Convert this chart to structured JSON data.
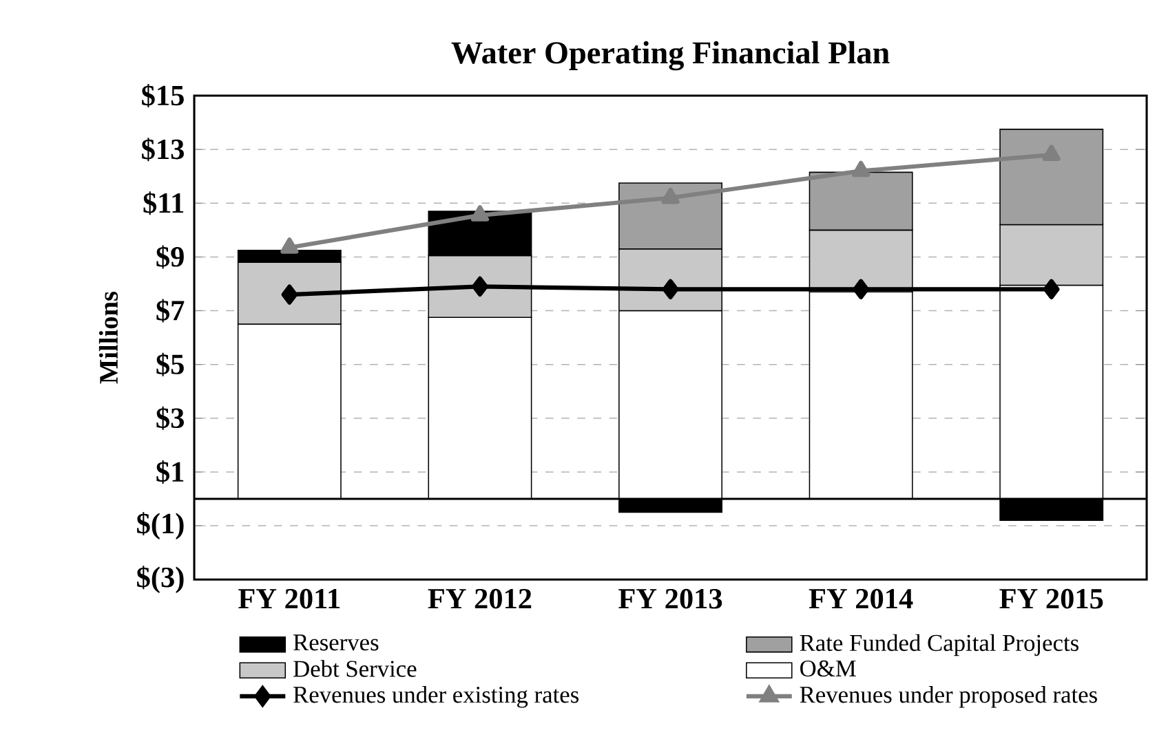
{
  "chart_data": {
    "type": "bar",
    "stacked": true,
    "title": "Water Operating Financial Plan",
    "ylabel": "Millions",
    "categories": [
      "FY 2011",
      "FY 2012",
      "FY 2013",
      "FY 2014",
      "FY 2015"
    ],
    "series": [
      {
        "name": "O&M",
        "color": "#ffffff",
        "values": [
          6.5,
          6.75,
          7.0,
          7.7,
          7.95
        ]
      },
      {
        "name": "Debt Service",
        "color": "#c8c8c8",
        "values": [
          2.3,
          2.3,
          2.3,
          2.3,
          2.25
        ]
      },
      {
        "name": "Rate Funded Capital Projects",
        "color": "#a0a0a0",
        "values": [
          0,
          0,
          2.45,
          2.15,
          3.55
        ]
      },
      {
        "name": "Reserves",
        "color": "#000000",
        "values": [
          0.45,
          1.65,
          -0.5,
          0,
          -0.8
        ]
      },
      {
        "name": "Revenues under existing rates",
        "type": "line",
        "color": "#000000",
        "marker": "diamond",
        "values": [
          7.6,
          7.9,
          7.8,
          7.8,
          7.8
        ]
      },
      {
        "name": "Revenues under proposed rates",
        "type": "line",
        "color": "#808080",
        "marker": "triangle",
        "values": [
          9.35,
          10.55,
          11.2,
          12.2,
          12.8
        ]
      }
    ],
    "ylim": [
      -3,
      15
    ],
    "yticks": [
      {
        "value": -3,
        "label": "$(3)"
      },
      {
        "value": -1,
        "label": "$(1)"
      },
      {
        "value": 1,
        "label": "$1"
      },
      {
        "value": 3,
        "label": "$3"
      },
      {
        "value": 5,
        "label": "$5"
      },
      {
        "value": 7,
        "label": "$7"
      },
      {
        "value": 9,
        "label": "$9"
      },
      {
        "value": 11,
        "label": "$11"
      },
      {
        "value": 13,
        "label": "$13"
      },
      {
        "value": 15,
        "label": "$15"
      }
    ],
    "grid": "y",
    "legend": "bottom"
  }
}
